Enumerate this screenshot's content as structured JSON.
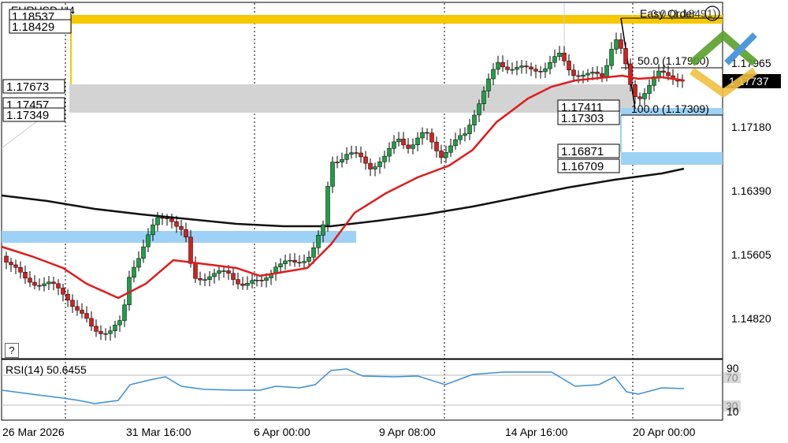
{
  "header": {
    "symbol_timeframe": "EURUSD,H4",
    "easy_order": "Easy Order",
    "gear_hint": "?"
  },
  "price_axis": {
    "ticks": [
      "1.17965",
      "1.17180",
      "1.16390",
      "1.15605",
      "1.14820"
    ],
    "current_price": "1.17737",
    "current_price_bg": "#000000"
  },
  "time_axis": {
    "labels": [
      "26 Mar 2026",
      "31 Mar 16:00",
      "6 Apr 00:00",
      "9 Apr 08:00",
      "14 Apr 16:00",
      "20 Apr 00:00"
    ]
  },
  "levels": {
    "resistance_top": "1.18537",
    "resistance_bottom": "1.18429",
    "zone_top": "1.17673",
    "zone_mid": "1.17457",
    "zone_bottom": "1.17349",
    "order_upper_a": "1.17411",
    "order_upper_b": "1.17303",
    "order_lower_a": "1.16871",
    "order_lower_b": "1.16709",
    "top_right_label": "0.0 (1.18491)",
    "fib_50": "50.0 (1.17900)",
    "fib_100": "100.0 (1.17309)"
  },
  "rsi": {
    "title": "RSI(14) 50.6455",
    "level_90": "90",
    "level_70": "70",
    "level_30": "30",
    "level_10": "10"
  },
  "colors": {
    "candle_up": "#1f9e46",
    "candle_down": "#d42020",
    "ma_fast": "#e01b1b",
    "ma_slow": "#111111",
    "rsi_line": "#3a8fd8",
    "yellow_zone": "#f5c800",
    "gray_zone": "#d3d3d3",
    "blue_zone": "#9dd1f5"
  }
}
